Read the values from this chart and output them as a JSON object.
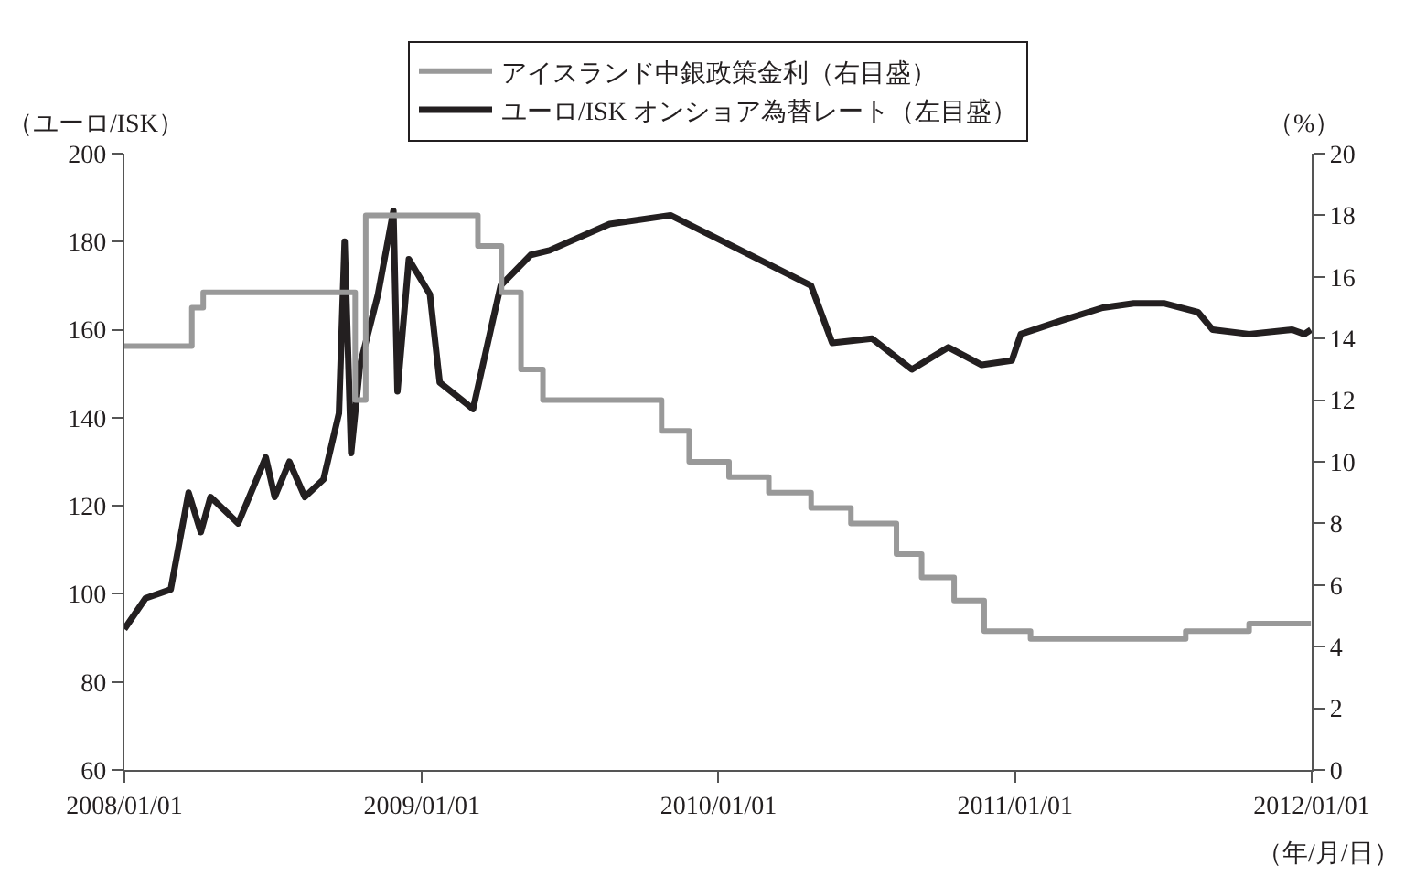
{
  "chart_data": {
    "type": "line",
    "xlabel": "（年/月/日）",
    "ylabel": "（ユーロ/ISK）",
    "y2label": "（%）",
    "xlim": [
      "2008-01-01",
      "2012-01-01"
    ],
    "xticks": [
      {
        "value": "2008-01-01",
        "label": "2008/01/01"
      },
      {
        "value": "2009-01-01",
        "label": "2009/01/01"
      },
      {
        "value": "2010-01-01",
        "label": "2010/01/01"
      },
      {
        "value": "2011-01-01",
        "label": "2011/01/01"
      },
      {
        "value": "2012-01-01",
        "label": "2012/01/01"
      }
    ],
    "ylim": [
      60,
      200
    ],
    "yticks": [
      60,
      80,
      100,
      120,
      140,
      160,
      180,
      200
    ],
    "y2lim": [
      0,
      20
    ],
    "y2ticks": [
      0,
      2,
      4,
      6,
      8,
      10,
      12,
      14,
      16,
      18,
      20
    ],
    "legend": "top",
    "marker": "none",
    "line_style": "solid",
    "series": [
      {
        "name": "アイスランド中銀政策金利（右目盛）",
        "type": "step",
        "axis": "y2",
        "color": "#999999",
        "x": [
          "2008-01-01",
          "2008-03-24",
          "2008-04-07",
          "2008-10-11",
          "2008-10-24",
          "2009-03-11",
          "2009-04-09",
          "2009-05-03",
          "2009-05-30",
          "2009-10-23",
          "2009-11-26",
          "2010-01-14",
          "2010-03-04",
          "2010-04-25",
          "2010-06-13",
          "2010-08-08",
          "2010-09-08",
          "2010-10-18",
          "2010-11-24",
          "2011-01-20",
          "2011-07-30",
          "2011-10-16",
          "2011-12-31"
        ],
        "values": [
          13.75,
          15,
          15.5,
          12,
          18,
          17,
          15.5,
          13,
          12,
          11,
          10,
          9.5,
          9,
          8.5,
          8,
          7,
          6.25,
          5.5,
          4.5,
          4.25,
          4.5,
          4.75,
          4.75
        ]
      },
      {
        "name": "ユーロ/ISK オンショア為替レート（左目盛）",
        "color": "#231f20",
        "x": [
          "2008-01-01",
          "2008-01-27",
          "2008-02-27",
          "2008-03-20",
          "2008-04-04",
          "2008-04-16",
          "2008-05-20",
          "2008-06-23",
          "2008-07-04",
          "2008-07-22",
          "2008-08-10",
          "2008-09-02",
          "2008-09-21",
          "2008-09-28",
          "2008-10-06",
          "2008-10-17",
          "2008-11-08",
          "2008-11-27",
          "2008-12-02",
          "2008-12-16",
          "2009-01-11",
          "2009-01-23",
          "2009-03-05",
          "2009-03-28",
          "2009-04-08",
          "2009-05-15",
          "2009-06-07",
          "2009-08-20",
          "2009-11-03",
          "2010-01-18",
          "2010-04-25",
          "2010-05-21",
          "2010-07-09",
          "2010-08-27",
          "2010-10-11",
          "2010-11-21",
          "2010-12-28",
          "2011-01-08",
          "2011-02-26",
          "2011-04-19",
          "2011-05-27",
          "2011-07-03",
          "2011-08-14",
          "2011-09-01",
          "2011-10-16",
          "2011-12-08",
          "2011-12-23",
          "2011-12-31"
        ],
        "values": [
          92,
          99,
          101,
          123,
          114,
          122,
          116,
          131,
          122,
          130,
          122,
          126,
          141,
          180,
          132,
          152,
          168,
          187,
          146,
          176,
          168,
          148,
          142,
          161,
          170,
          177,
          178,
          184,
          186,
          179,
          170,
          157,
          158,
          151,
          156,
          152,
          153,
          159,
          162,
          165,
          166,
          166,
          164,
          160,
          159,
          160,
          159,
          160
        ]
      }
    ]
  }
}
